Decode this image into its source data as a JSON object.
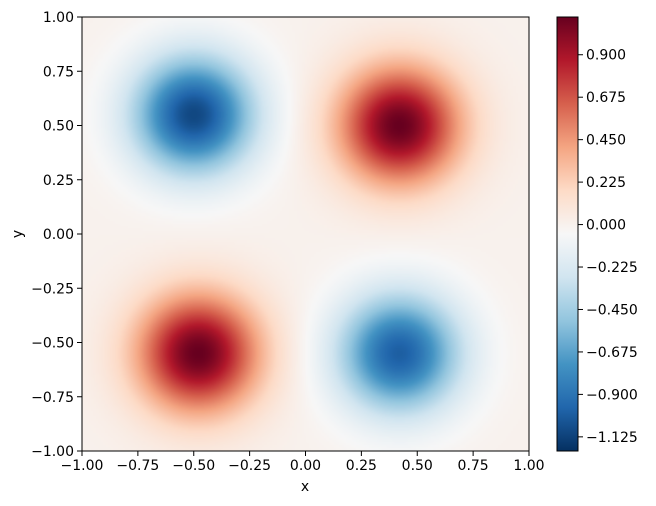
{
  "chart_data": {
    "type": "heatmap",
    "title": "",
    "xlabel": "x",
    "ylabel": "y",
    "xlim": [
      -1.0,
      1.0
    ],
    "ylim": [
      -1.0,
      1.0
    ],
    "x_ticks": [
      "−1.00",
      "−0.75",
      "−0.50",
      "−0.25",
      "0.00",
      "0.25",
      "0.50",
      "0.75",
      "1.00"
    ],
    "y_ticks": [
      "−1.00",
      "−0.75",
      "−0.50",
      "−0.25",
      "0.00",
      "0.25",
      "0.50",
      "0.75",
      "1.00"
    ],
    "x_tick_values": [
      -1.0,
      -0.75,
      -0.5,
      -0.25,
      0.0,
      0.25,
      0.5,
      0.75,
      1.0
    ],
    "y_tick_values": [
      -1.0,
      -0.75,
      -0.5,
      -0.25,
      0.0,
      0.25,
      0.5,
      0.75,
      1.0
    ],
    "colormap": "RdBu_r",
    "color_range": [
      -1.2,
      1.1
    ],
    "colorbar_ticks": [
      "0.900",
      "0.675",
      "0.450",
      "0.225",
      "0.000",
      "−0.225",
      "−0.450",
      "−0.675",
      "−0.900",
      "−1.125"
    ],
    "colorbar_tick_values": [
      0.9,
      0.675,
      0.45,
      0.225,
      0.0,
      -0.225,
      -0.45,
      -0.675,
      -0.9,
      -1.125
    ],
    "field_features": [
      {
        "name": "negative extremum",
        "x": -0.5,
        "y": 0.55,
        "value": -1.1
      },
      {
        "name": "positive extremum",
        "x": 0.42,
        "y": 0.5,
        "value": 1.1
      },
      {
        "name": "positive extremum",
        "x": -0.48,
        "y": -0.55,
        "value": 1.1
      },
      {
        "name": "negative extremum",
        "x": 0.42,
        "y": -0.55,
        "value": -1.0
      }
    ],
    "grid": false
  }
}
